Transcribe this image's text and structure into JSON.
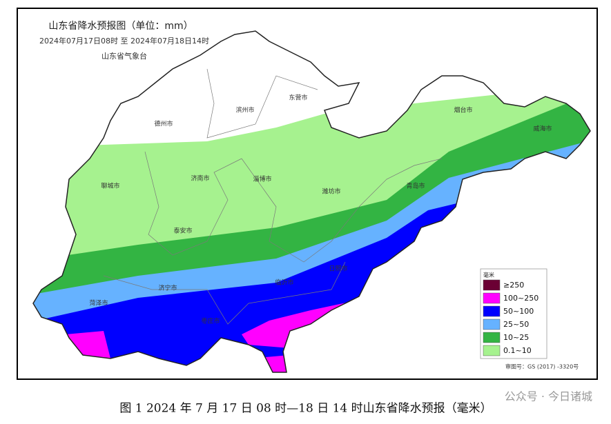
{
  "header": {
    "title": "山东省降水预报图（单位：mm）",
    "period": "2024年07月17日08时 至 2024年07月18日14时",
    "issuer": "山东省气象台"
  },
  "cities": [
    "德州市",
    "滨州市",
    "东营市",
    "烟台市",
    "威海市",
    "聊城市",
    "济南市",
    "淄博市",
    "潍坊市",
    "青岛市",
    "泰安市",
    "日照市",
    "临沂市",
    "济宁市",
    "菏泽市",
    "枣庄市"
  ],
  "legend": {
    "title": "毫米",
    "items": [
      {
        "label": "≥250",
        "color": "#6b0034"
      },
      {
        "label": "100~250",
        "color": "#ff00ff"
      },
      {
        "label": "50~100",
        "color": "#0000ff"
      },
      {
        "label": "25~50",
        "color": "#66b2ff"
      },
      {
        "label": "10~25",
        "color": "#33b443"
      },
      {
        "label": "0.1~10",
        "color": "#a6f28f"
      }
    ]
  },
  "approval": "审图号：GS (2017) -3320号",
  "caption": "图 1 2024 年 7 月 17 日 08 时—18 日 14 时山东省降水预报（毫米）",
  "watermark": "公众号 · 今日诸城"
}
